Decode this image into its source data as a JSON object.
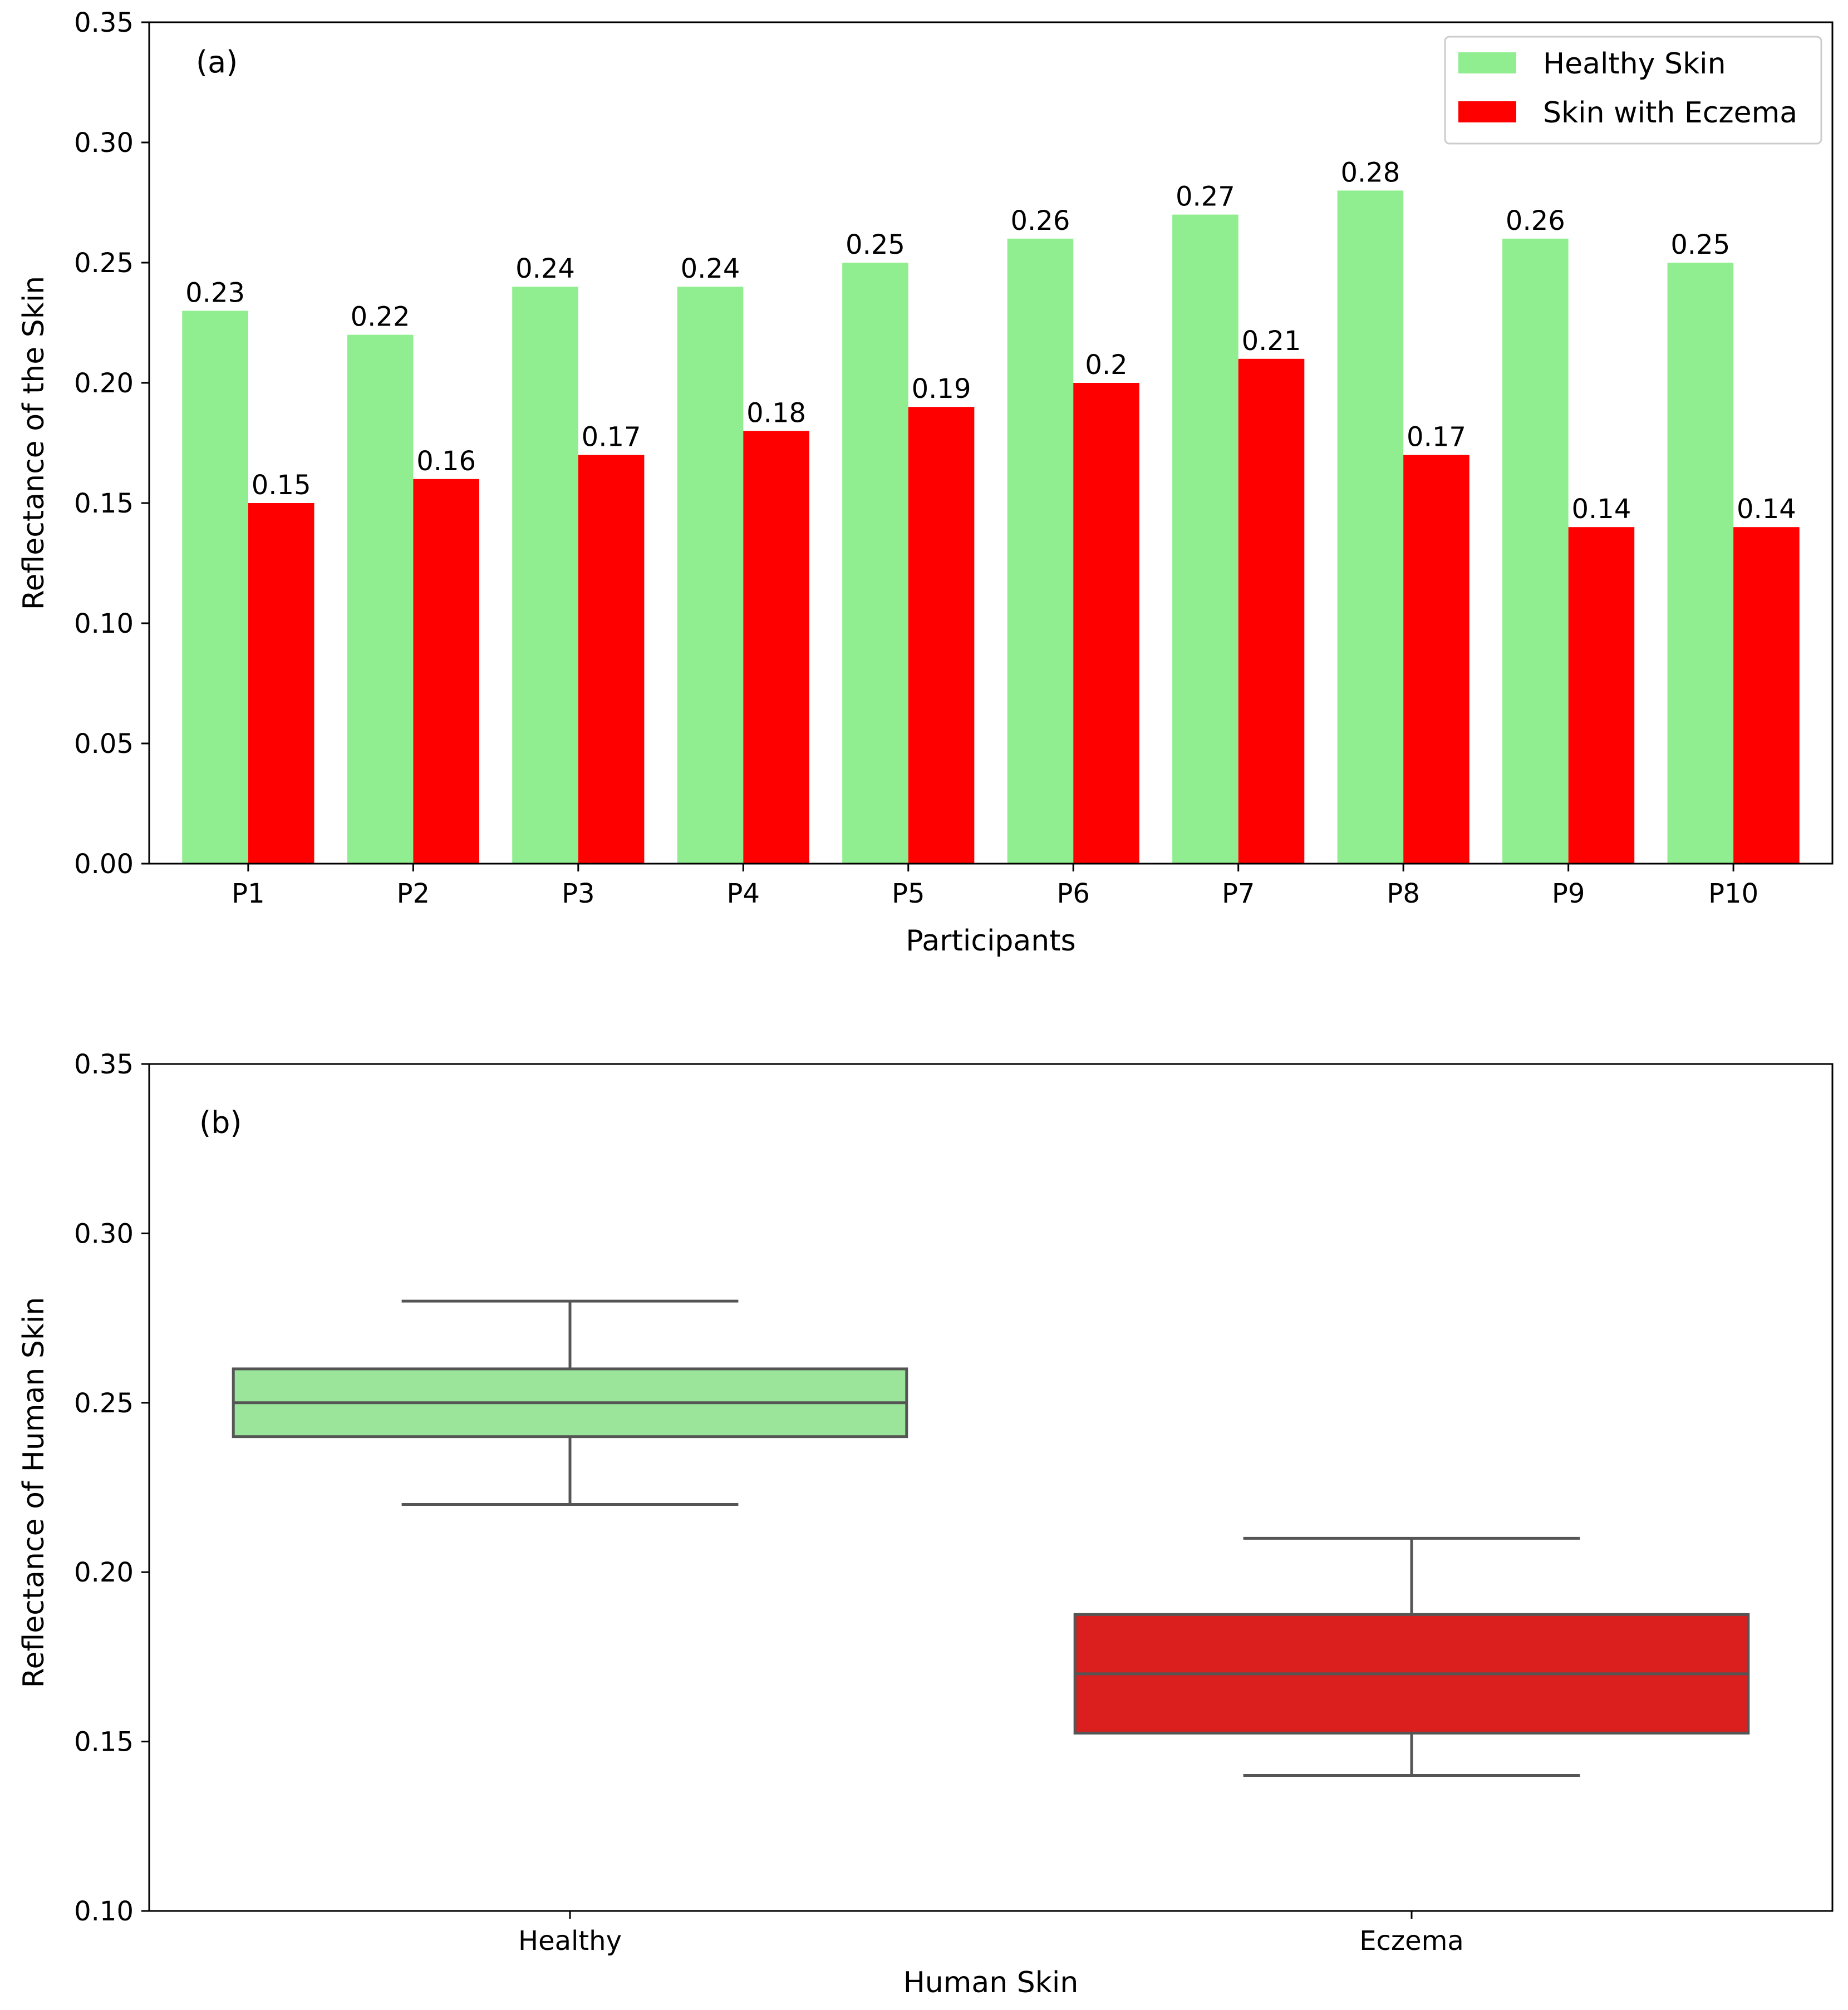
{
  "chart_data": [
    {
      "type": "bar",
      "panel_label": "(a)",
      "title": "",
      "xlabel": "Participants",
      "ylabel": "Reflectance of the Skin",
      "ylim": [
        0,
        0.35
      ],
      "yticks": [
        "0.00",
        "0.05",
        "0.10",
        "0.15",
        "0.20",
        "0.25",
        "0.30",
        "0.35"
      ],
      "categories": [
        "P1",
        "P2",
        "P3",
        "P4",
        "P5",
        "P6",
        "P7",
        "P8",
        "P9",
        "P10"
      ],
      "legend_position": "top-right",
      "series": [
        {
          "name": "Healthy Skin",
          "color": "#90ee90",
          "values": [
            0.23,
            0.22,
            0.24,
            0.24,
            0.25,
            0.26,
            0.27,
            0.28,
            0.26,
            0.25
          ],
          "labels": [
            "0.23",
            "0.22",
            "0.24",
            "0.24",
            "0.25",
            "0.26",
            "0.27",
            "0.28",
            "0.26",
            "0.25"
          ]
        },
        {
          "name": "Skin with Eczema",
          "color": "#ff0000",
          "values": [
            0.15,
            0.16,
            0.17,
            0.18,
            0.19,
            0.2,
            0.21,
            0.17,
            0.14,
            0.14
          ],
          "labels": [
            "0.15",
            "0.16",
            "0.17",
            "0.18",
            "0.19",
            "0.2",
            "0.21",
            "0.17",
            "0.14",
            "0.14"
          ]
        }
      ]
    },
    {
      "type": "box",
      "panel_label": "(b)",
      "title": "",
      "xlabel": "Human Skin",
      "ylabel": "Reflectance of Human Skin",
      "ylim": [
        0.1,
        0.35
      ],
      "yticks": [
        "0.10",
        "0.15",
        "0.20",
        "0.25",
        "0.30",
        "0.35"
      ],
      "categories": [
        "Healthy",
        "Eczema"
      ],
      "boxes": [
        {
          "name": "Healthy",
          "color": "#9ae59a",
          "whisker_low": 0.22,
          "q1": 0.24,
          "median": 0.25,
          "q3": 0.26,
          "whisker_high": 0.28
        },
        {
          "name": "Eczema",
          "color": "#db1f1f",
          "whisker_low": 0.14,
          "q1": 0.1525,
          "median": 0.17,
          "q3": 0.1875,
          "whisker_high": 0.21
        }
      ]
    }
  ]
}
